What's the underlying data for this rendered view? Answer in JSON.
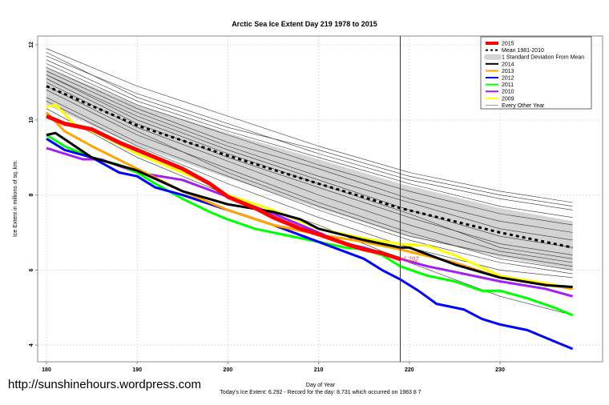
{
  "chart_data": {
    "type": "line",
    "title": "Arctic Sea Ice Extent Day 219 1978 to 2015",
    "xlabel": "Day of Year",
    "ylabel": "Ice Extent in millions of sq. km.",
    "subtitle": "Today's Ice Extent: 6.292  - Record for the day: 8.731 which occurred on 1983 8 7",
    "xlim": [
      179,
      239
    ],
    "ylim": [
      3.75,
      12.2
    ],
    "xticks": [
      180,
      190,
      200,
      210,
      220,
      230
    ],
    "yticks": [
      4,
      6,
      8,
      10,
      12
    ],
    "grid": true,
    "legend_position": "top-right",
    "current_day": 219,
    "annotation": "6.292",
    "mean": {
      "name": "Mean 1981-2010",
      "color": "#000000",
      "x": [
        180,
        190,
        200,
        210,
        219,
        230,
        238
      ],
      "y": [
        10.9,
        9.85,
        9.05,
        8.3,
        7.65,
        7.0,
        6.6
      ]
    },
    "std_band": {
      "name": "1 Standard Deviation From Mean",
      "color": "#d3d3d3",
      "x": [
        180,
        190,
        200,
        210,
        219,
        230,
        238
      ],
      "lower": [
        10.4,
        9.3,
        8.45,
        7.65,
        6.95,
        6.35,
        6.0
      ],
      "upper": [
        11.4,
        10.4,
        9.65,
        8.95,
        8.3,
        7.65,
        7.3
      ]
    },
    "series": [
      {
        "name": "2015",
        "color": "#ff0000",
        "width": 5,
        "x": [
          180,
          182,
          185,
          188,
          190,
          192,
          195,
          198,
          200,
          203,
          205,
          208,
          210,
          213,
          215,
          217,
          219
        ],
        "y": [
          10.1,
          9.9,
          9.75,
          9.4,
          9.2,
          9.0,
          8.7,
          8.3,
          7.95,
          7.65,
          7.4,
          7.1,
          6.95,
          6.7,
          6.55,
          6.45,
          6.292
        ]
      },
      {
        "name": "2014",
        "color": "#000000",
        "width": 3,
        "x": [
          180,
          181,
          185,
          190,
          195,
          200,
          205,
          208,
          210,
          215,
          219,
          220,
          225,
          230,
          235,
          238
        ],
        "y": [
          9.6,
          9.65,
          9.0,
          8.65,
          8.1,
          7.75,
          7.55,
          7.35,
          7.1,
          6.8,
          6.6,
          6.6,
          6.15,
          5.8,
          5.6,
          5.55
        ]
      },
      {
        "name": "2013",
        "color": "#ffa500",
        "width": 3,
        "x": [
          180,
          182,
          185,
          190,
          195,
          200,
          205,
          210,
          215,
          219,
          225,
          230,
          238
        ],
        "y": [
          10.2,
          9.7,
          9.3,
          8.7,
          8.1,
          7.6,
          7.2,
          6.95,
          6.75,
          6.55,
          6.2,
          5.8,
          5.5
        ]
      },
      {
        "name": "2012",
        "color": "#0000ff",
        "width": 3,
        "x": [
          180,
          182,
          185,
          188,
          190,
          192,
          195,
          200,
          205,
          210,
          215,
          217,
          219,
          221,
          223,
          226,
          228,
          230,
          233,
          236,
          238
        ],
        "y": [
          9.5,
          9.2,
          9.0,
          8.6,
          8.5,
          8.2,
          8.0,
          7.6,
          7.2,
          6.75,
          6.3,
          6.0,
          5.75,
          5.45,
          5.1,
          4.95,
          4.7,
          4.55,
          4.4,
          4.1,
          3.9
        ]
      },
      {
        "name": "2011",
        "color": "#00ff00",
        "width": 3,
        "x": [
          180,
          182,
          185,
          188,
          190,
          192,
          195,
          198,
          200,
          203,
          205,
          208,
          210,
          213,
          215,
          217,
          219,
          222,
          225,
          228,
          230,
          233,
          236,
          238
        ],
        "y": [
          9.6,
          9.3,
          9.0,
          8.8,
          8.6,
          8.3,
          7.9,
          7.55,
          7.35,
          7.1,
          7.0,
          6.85,
          6.75,
          6.6,
          6.55,
          6.4,
          6.1,
          5.85,
          5.7,
          5.45,
          5.45,
          5.25,
          5.0,
          4.8
        ]
      },
      {
        "name": "2010",
        "color": "#a020f0",
        "width": 3,
        "x": [
          180,
          182,
          184,
          186,
          190,
          195,
          200,
          205,
          210,
          213,
          215,
          219,
          222,
          225,
          230,
          235,
          238
        ],
        "y": [
          9.25,
          9.1,
          8.95,
          8.95,
          8.6,
          8.4,
          7.95,
          7.5,
          7.0,
          6.7,
          6.6,
          6.3,
          6.1,
          5.95,
          5.7,
          5.5,
          5.3
        ]
      },
      {
        "name": "2009",
        "color": "#ffff00",
        "width": 3,
        "x": [
          180,
          181,
          183,
          186,
          190,
          195,
          198,
          200,
          205,
          210,
          215,
          219,
          222,
          225,
          230,
          235,
          238
        ],
        "y": [
          10.35,
          10.4,
          9.9,
          9.6,
          9.1,
          8.6,
          8.3,
          8.0,
          7.6,
          7.1,
          6.85,
          6.7,
          6.65,
          6.4,
          5.85,
          5.65,
          5.5
        ]
      }
    ],
    "other_years": {
      "name": "Every Other Year",
      "color": "#000000",
      "x": [
        180,
        190,
        200,
        210,
        220,
        230,
        238
      ],
      "lines": [
        [
          11.9,
          10.9,
          10.1,
          9.3,
          8.6,
          8.1,
          7.8
        ],
        [
          11.7,
          10.7,
          9.9,
          9.1,
          8.4,
          7.9,
          7.6
        ],
        [
          11.6,
          10.5,
          9.7,
          9.0,
          8.3,
          7.7,
          7.4
        ],
        [
          11.5,
          10.4,
          9.6,
          8.8,
          8.1,
          7.5,
          7.2
        ],
        [
          11.4,
          10.3,
          9.4,
          8.7,
          7.9,
          7.3,
          7.0
        ],
        [
          11.3,
          10.2,
          9.3,
          8.5,
          7.8,
          7.1,
          6.8
        ],
        [
          11.2,
          10.1,
          9.2,
          8.4,
          7.6,
          6.9,
          6.6
        ],
        [
          11.1,
          9.9,
          9.0,
          8.2,
          7.4,
          6.7,
          6.4
        ],
        [
          11.0,
          9.8,
          8.9,
          8.0,
          7.2,
          6.5,
          6.2
        ],
        [
          10.8,
          9.6,
          8.7,
          7.8,
          7.0,
          6.3,
          6.0
        ],
        [
          10.6,
          9.4,
          8.5,
          7.6,
          6.8,
          6.2,
          5.9
        ],
        [
          10.5,
          9.3,
          8.3,
          7.4,
          6.6,
          6.0,
          5.8
        ],
        [
          10.9,
          9.7,
          8.6,
          7.7,
          6.9,
          6.4,
          6.1
        ],
        [
          11.8,
          10.6,
          9.8,
          9.2,
          8.5,
          8.0,
          7.7
        ],
        [
          10.3,
          9.0,
          8.0,
          7.2,
          6.2,
          5.3,
          4.8
        ],
        [
          11.2,
          10.0,
          9.1,
          8.3,
          7.5,
          6.6,
          6.3
        ]
      ]
    },
    "legend": [
      "2015",
      "Mean 1981-2010",
      "1 Standard Deviation From Mean",
      "2014",
      "2013",
      "2012",
      "2011",
      "2010",
      "2009",
      "Every Other Year"
    ]
  },
  "watermark": "http://sunshinehours.wordpress.com"
}
